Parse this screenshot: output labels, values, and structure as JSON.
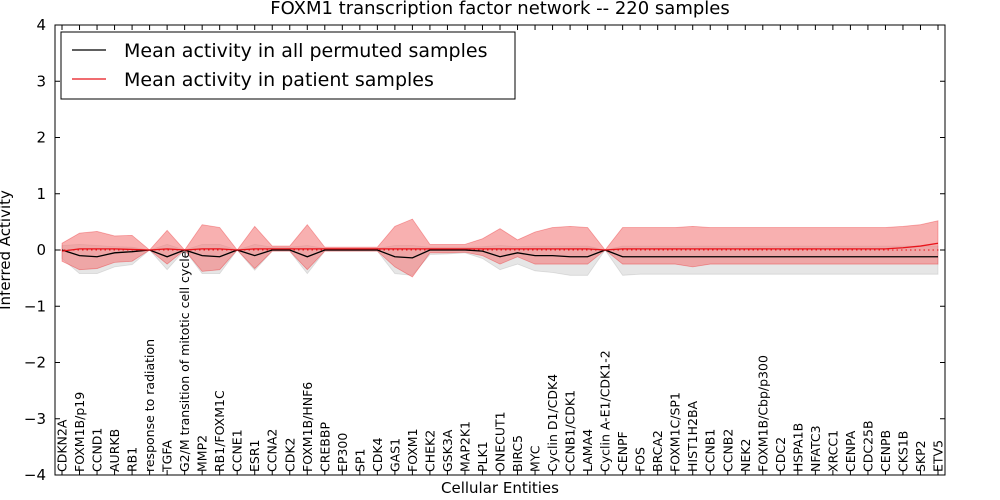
{
  "chart_data": {
    "type": "line",
    "title": "FOXM1 transcription factor network -- 220 samples",
    "xlabel": "Cellular Entities",
    "ylabel": "Inferred Activity",
    "ylim": [
      -4,
      4
    ],
    "yticks": [
      -4,
      -3,
      -2,
      -1,
      0,
      1,
      2,
      3,
      4
    ],
    "ytick_labels": [
      "−4",
      "−3",
      "−2",
      "−1",
      "0",
      "1",
      "2",
      "3",
      "4"
    ],
    "legend_position": "top-left",
    "colors": {
      "permuted": "#000000",
      "patient": "#e8141b",
      "permuted_band": "#c8c8c8",
      "patient_band": "#f47c7c"
    },
    "categories": [
      "CDKN2A",
      "FOXM1B/p19",
      "CCND1",
      "AURKB",
      "RB1",
      "response to radiation",
      "TGFA",
      "G2/M transition of mitotic cell cycle",
      "MMP2",
      "RB1/FOXM1C",
      "CCNE1",
      "ESR1",
      "CCNA2",
      "CDK2",
      "FOXM1B/HNF6",
      "CREBBP",
      "EP300",
      "SP1",
      "CDK4",
      "GAS1",
      "FOXM1",
      "CHEK2",
      "GSK3A",
      "MAP2K1",
      "PLK1",
      "ONECUT1",
      "BIRC5",
      "MYC",
      "Cyclin D1/CDK4",
      "CCNB1/CDK1",
      "LAMA4",
      "Cyclin A-E1/CDK1-2",
      "CENPF",
      "FOS",
      "BRCA2",
      "FOXM1C/SP1",
      "HIST1H2BA",
      "CCNB1",
      "CCNB2",
      "NEK2",
      "FOXM1B/Cbp/p300",
      "CDC2",
      "HSPA1B",
      "NFATC3",
      "XRCC1",
      "CENPA",
      "CDC25B",
      "CENPB",
      "CKS1B",
      "SKP2",
      "ETV5"
    ],
    "series": [
      {
        "name": "Mean activity in all permuted samples",
        "color": "#000000",
        "values": [
          0.0,
          -0.1,
          -0.12,
          -0.05,
          -0.03,
          0.0,
          -0.12,
          0.0,
          -0.1,
          -0.12,
          0.0,
          -0.1,
          0.0,
          0.0,
          -0.12,
          0.0,
          0.0,
          0.0,
          0.0,
          -0.12,
          -0.14,
          0.0,
          0.0,
          0.0,
          -0.02,
          -0.12,
          -0.05,
          -0.1,
          -0.1,
          -0.12,
          -0.12,
          0.0,
          -0.12,
          -0.12,
          -0.12,
          -0.12,
          -0.12,
          -0.12,
          -0.12,
          -0.12,
          -0.12,
          -0.12,
          -0.12,
          -0.12,
          -0.12,
          -0.12,
          -0.12,
          -0.12,
          -0.12,
          -0.12,
          -0.12
        ],
        "lower": [
          -0.15,
          -0.42,
          -0.42,
          -0.3,
          -0.26,
          0.0,
          -0.35,
          0.0,
          -0.42,
          -0.42,
          0.0,
          -0.36,
          -0.02,
          -0.02,
          -0.42,
          -0.02,
          -0.02,
          -0.02,
          -0.02,
          -0.42,
          -0.45,
          -0.08,
          -0.07,
          -0.05,
          -0.15,
          -0.35,
          -0.25,
          -0.37,
          -0.4,
          -0.45,
          -0.45,
          0.0,
          -0.45,
          -0.43,
          -0.43,
          -0.43,
          -0.43,
          -0.43,
          -0.43,
          -0.43,
          -0.43,
          -0.43,
          -0.43,
          -0.43,
          -0.43,
          -0.43,
          -0.43,
          -0.43,
          -0.43,
          -0.43,
          -0.43
        ],
        "upper": [
          0.08,
          0.1,
          0.08,
          0.06,
          0.05,
          0.0,
          0.1,
          0.0,
          0.1,
          0.1,
          0.0,
          0.1,
          0.05,
          0.05,
          0.08,
          0.03,
          0.03,
          0.03,
          0.03,
          0.08,
          0.08,
          0.05,
          0.05,
          0.05,
          0.06,
          0.08,
          0.06,
          0.07,
          0.07,
          0.07,
          0.07,
          0.0,
          0.07,
          0.07,
          0.07,
          0.07,
          0.07,
          0.07,
          0.07,
          0.07,
          0.07,
          0.07,
          0.07,
          0.07,
          0.07,
          0.07,
          0.07,
          0.07,
          0.07,
          0.07,
          0.07
        ]
      },
      {
        "name": "Mean activity in patient samples",
        "color": "#e8141b",
        "values": [
          -0.02,
          0.02,
          0.02,
          0.02,
          0.01,
          0.0,
          0.02,
          0.0,
          0.02,
          0.02,
          0.0,
          0.02,
          0.02,
          0.02,
          0.02,
          0.02,
          0.02,
          0.02,
          0.02,
          0.02,
          0.02,
          0.02,
          0.02,
          0.02,
          0.02,
          0.02,
          0.02,
          0.02,
          0.02,
          0.02,
          0.02,
          0.0,
          0.02,
          0.02,
          0.02,
          0.02,
          0.02,
          0.02,
          0.02,
          0.02,
          0.02,
          0.02,
          0.02,
          0.02,
          0.02,
          0.02,
          0.02,
          0.02,
          0.04,
          0.07,
          0.12
        ],
        "lower": [
          -0.2,
          -0.35,
          -0.33,
          -0.22,
          -0.2,
          0.0,
          -0.25,
          0.0,
          -0.38,
          -0.35,
          0.0,
          -0.33,
          -0.02,
          -0.02,
          -0.35,
          -0.02,
          -0.02,
          -0.02,
          -0.02,
          -0.3,
          -0.48,
          -0.05,
          -0.05,
          -0.04,
          -0.1,
          -0.25,
          -0.12,
          -0.25,
          -0.25,
          -0.25,
          -0.25,
          0.0,
          -0.25,
          -0.25,
          -0.25,
          -0.25,
          -0.3,
          -0.25,
          -0.25,
          -0.25,
          -0.25,
          -0.25,
          -0.25,
          -0.25,
          -0.25,
          -0.25,
          -0.25,
          -0.25,
          -0.25,
          -0.25,
          -0.25
        ],
        "upper": [
          0.12,
          0.3,
          0.33,
          0.25,
          0.26,
          0.0,
          0.35,
          0.0,
          0.45,
          0.4,
          0.0,
          0.42,
          0.07,
          0.07,
          0.45,
          0.05,
          0.05,
          0.05,
          0.05,
          0.42,
          0.55,
          0.1,
          0.1,
          0.1,
          0.2,
          0.38,
          0.18,
          0.32,
          0.4,
          0.42,
          0.4,
          0.0,
          0.4,
          0.4,
          0.4,
          0.4,
          0.42,
          0.4,
          0.4,
          0.4,
          0.4,
          0.4,
          0.4,
          0.4,
          0.4,
          0.4,
          0.4,
          0.4,
          0.42,
          0.45,
          0.52
        ]
      }
    ]
  }
}
